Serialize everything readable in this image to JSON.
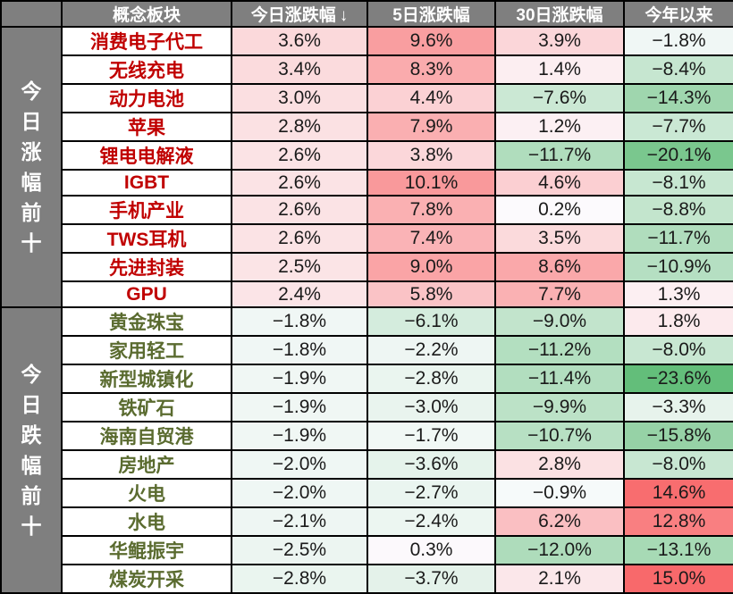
{
  "header": {
    "corner_label": "",
    "columns": [
      {
        "id": "concept",
        "label": "概念板块"
      },
      {
        "id": "today-change",
        "label": "今日涨跌幅",
        "sort_icon": "↓"
      },
      {
        "id": "5day-change",
        "label": "5日涨跌幅"
      },
      {
        "id": "30day-change",
        "label": "30日涨跌幅"
      },
      {
        "id": "ytd-change",
        "label": "今年以来"
      }
    ]
  },
  "chart_data": {
    "type": "table",
    "columns": [
      "概念板块",
      "今日涨跌幅",
      "5日涨跌幅",
      "30日涨跌幅",
      "今年以来"
    ],
    "value_format": "percent_1dp",
    "row_groups": [
      {
        "id": "gainers",
        "label": "今日涨幅前十",
        "rows": [
          {
            "name": "消费电子代工",
            "values": [
              3.6,
              9.6,
              3.9,
              -1.8
            ]
          },
          {
            "name": "无线充电",
            "values": [
              3.4,
              8.3,
              1.4,
              -8.4
            ]
          },
          {
            "name": "动力电池",
            "values": [
              3.0,
              4.4,
              -7.6,
              -14.3
            ]
          },
          {
            "name": "苹果",
            "values": [
              2.8,
              7.9,
              1.2,
              -7.7
            ]
          },
          {
            "name": "锂电电解液",
            "values": [
              2.6,
              3.8,
              -11.7,
              -20.1
            ]
          },
          {
            "name": "IGBT",
            "values": [
              2.6,
              10.1,
              4.6,
              -8.1
            ]
          },
          {
            "name": "手机产业",
            "values": [
              2.6,
              7.8,
              0.2,
              -8.8
            ]
          },
          {
            "name": "TWS耳机",
            "values": [
              2.6,
              7.4,
              3.5,
              -11.7
            ]
          },
          {
            "name": "先进封装",
            "values": [
              2.5,
              9.0,
              8.6,
              -10.9
            ]
          },
          {
            "name": "GPU",
            "values": [
              2.4,
              5.8,
              7.7,
              1.3
            ]
          }
        ]
      },
      {
        "id": "losers",
        "label": "今日跌幅前十",
        "rows": [
          {
            "name": "黄金珠宝",
            "values": [
              -1.8,
              -6.1,
              -9.0,
              1.8
            ]
          },
          {
            "name": "家用轻工",
            "values": [
              -1.8,
              -2.2,
              -11.2,
              -8.0
            ]
          },
          {
            "name": "新型城镇化",
            "values": [
              -1.9,
              -2.8,
              -11.4,
              -23.6
            ]
          },
          {
            "name": "铁矿石",
            "values": [
              -1.9,
              -3.0,
              -9.9,
              -3.3
            ]
          },
          {
            "name": "海南自贸港",
            "values": [
              -1.9,
              -1.7,
              -10.7,
              -15.8
            ]
          },
          {
            "name": "房地产",
            "values": [
              -2.0,
              -3.6,
              2.8,
              -8.0
            ]
          },
          {
            "name": "火电",
            "values": [
              -2.0,
              -2.7,
              -0.9,
              14.6
            ]
          },
          {
            "name": "水电",
            "values": [
              -2.1,
              -2.4,
              6.2,
              12.8
            ]
          },
          {
            "name": "华鲲振宇",
            "values": [
              -2.5,
              0.3,
              -12.0,
              -13.1
            ]
          },
          {
            "name": "煤炭开采",
            "values": [
              -2.8,
              -3.7,
              2.1,
              15.0
            ]
          }
        ]
      }
    ],
    "color_scale": {
      "min": -23.6,
      "mid": 0,
      "max": 15.0,
      "min_color": "#63BE7A",
      "mid_color": "#FCFCFF",
      "max_color": "#F8696B"
    }
  },
  "colors": {
    "header_bg": "#7F7F7F",
    "header_text": "#FFFFFF",
    "border": "#000000",
    "gainer_label": "#C00000",
    "loser_label": "#5A6B2F",
    "value_text": "#1A1A1A"
  }
}
